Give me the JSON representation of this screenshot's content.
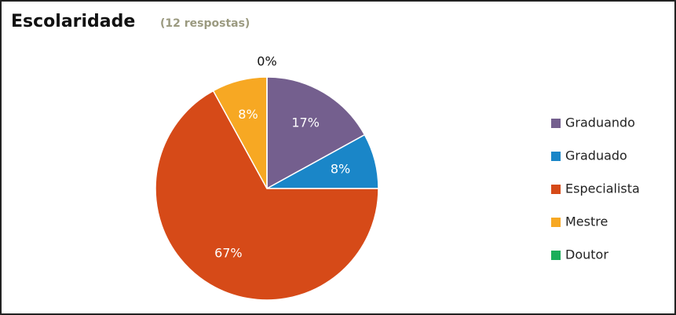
{
  "chart_data": {
    "type": "pie",
    "title": "Escolaridade",
    "subtitle": "(12 respostas)",
    "categories": [
      "Graduando",
      "Graduado",
      "Especialista",
      "Mestre",
      "Doutor"
    ],
    "values": [
      17,
      8,
      67,
      8,
      0
    ],
    "value_labels": [
      "17%",
      "8%",
      "67%",
      "8%",
      "0%"
    ],
    "colors": [
      "#745f8e",
      "#1a86c8",
      "#d64a18",
      "#f7a823",
      "#1aae5a"
    ],
    "legend": "right"
  }
}
